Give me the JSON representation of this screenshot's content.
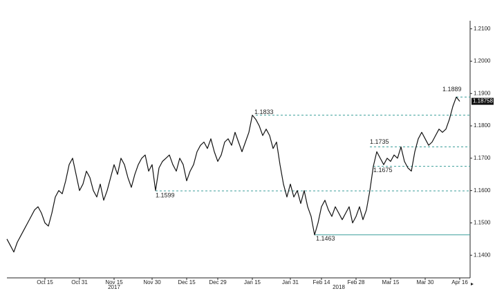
{
  "chart_data": {
    "type": "line",
    "color": "#111111",
    "values": [
      1.145,
      1.143,
      1.141,
      1.144,
      1.146,
      1.148,
      1.15,
      1.152,
      1.154,
      1.155,
      1.153,
      1.15,
      1.149,
      1.153,
      1.158,
      1.16,
      1.159,
      1.163,
      1.168,
      1.17,
      1.165,
      1.16,
      1.162,
      1.166,
      1.164,
      1.16,
      1.158,
      1.162,
      1.157,
      1.16,
      1.164,
      1.168,
      1.165,
      1.17,
      1.168,
      1.164,
      1.161,
      1.165,
      1.168,
      1.17,
      1.171,
      1.166,
      1.168,
      1.16,
      1.167,
      1.169,
      1.17,
      1.171,
      1.168,
      1.166,
      1.17,
      1.168,
      1.163,
      1.166,
      1.168,
      1.172,
      1.174,
      1.175,
      1.173,
      1.176,
      1.172,
      1.169,
      1.171,
      1.175,
      1.176,
      1.174,
      1.178,
      1.175,
      1.172,
      1.175,
      1.178,
      1.1833,
      1.182,
      1.18,
      1.177,
      1.179,
      1.177,
      1.173,
      1.175,
      1.168,
      1.162,
      1.158,
      1.162,
      1.158,
      1.16,
      1.156,
      1.16,
      1.155,
      1.152,
      1.1463,
      1.15,
      1.155,
      1.157,
      1.154,
      1.152,
      1.155,
      1.153,
      1.151,
      1.153,
      1.155,
      1.15,
      1.152,
      1.155,
      1.151,
      1.154,
      1.16,
      1.1675,
      1.172,
      1.17,
      1.168,
      1.17,
      1.169,
      1.171,
      1.17,
      1.1735,
      1.169,
      1.167,
      1.166,
      1.172,
      1.176,
      1.178,
      1.176,
      1.174,
      1.175,
      1.177,
      1.179,
      1.178,
      1.179,
      1.182,
      1.186,
      1.1889,
      1.18758
    ],
    "xlim": [
      0,
      134
    ],
    "xticks": [
      {
        "value": 11,
        "label": "Oct 15"
      },
      {
        "value": 21,
        "label": "Oct 31"
      },
      {
        "value": 31,
        "label": "Nov 15"
      },
      {
        "value": 42,
        "label": "Nov 30"
      },
      {
        "value": 52,
        "label": "Dec 15"
      },
      {
        "value": 61,
        "label": "Dec 29"
      },
      {
        "value": 71,
        "label": "Jan 15"
      },
      {
        "value": 82,
        "label": "Jan 31"
      },
      {
        "value": 91,
        "label": "Feb 14"
      },
      {
        "value": 101,
        "label": "Feb 28"
      },
      {
        "value": 111,
        "label": "Mar 15"
      },
      {
        "value": 121,
        "label": "Mar 30"
      },
      {
        "value": 131,
        "label": "Apr 16"
      }
    ],
    "year_labels": [
      {
        "value": 31,
        "label": "2017"
      },
      {
        "value": 96,
        "label": "2018"
      }
    ],
    "ylim": [
      1.133,
      1.2125
    ],
    "yticks": [
      {
        "value": 1.14,
        "label": "1.1400"
      },
      {
        "value": 1.15,
        "label": "1.1500"
      },
      {
        "value": 1.16,
        "label": "1.1600"
      },
      {
        "value": 1.17,
        "label": "1.1700"
      },
      {
        "value": 1.18,
        "label": "1.1800"
      },
      {
        "value": 1.19,
        "label": "1.1900"
      },
      {
        "value": 1.2,
        "label": "1.2000"
      },
      {
        "value": 1.21,
        "label": "1.2100"
      }
    ],
    "levels": [
      {
        "value": 1.1833,
        "label": "1.1833",
        "x": 72
      },
      {
        "value": 1.1599,
        "label": "1.1599",
        "x": 43
      },
      {
        "value": 1.1463,
        "label": "1.1463",
        "x": 89
      },
      {
        "value": 1.1735,
        "label": "1.1735",
        "x": 105
      },
      {
        "value": 1.1675,
        "label": "1.1675",
        "x": 106
      },
      {
        "value": 1.1889,
        "label": "1.1889",
        "x": 130
      }
    ],
    "last_price": {
      "value": 1.18758,
      "label": "1.18758"
    },
    "level_color": "#3a9e9a"
  }
}
